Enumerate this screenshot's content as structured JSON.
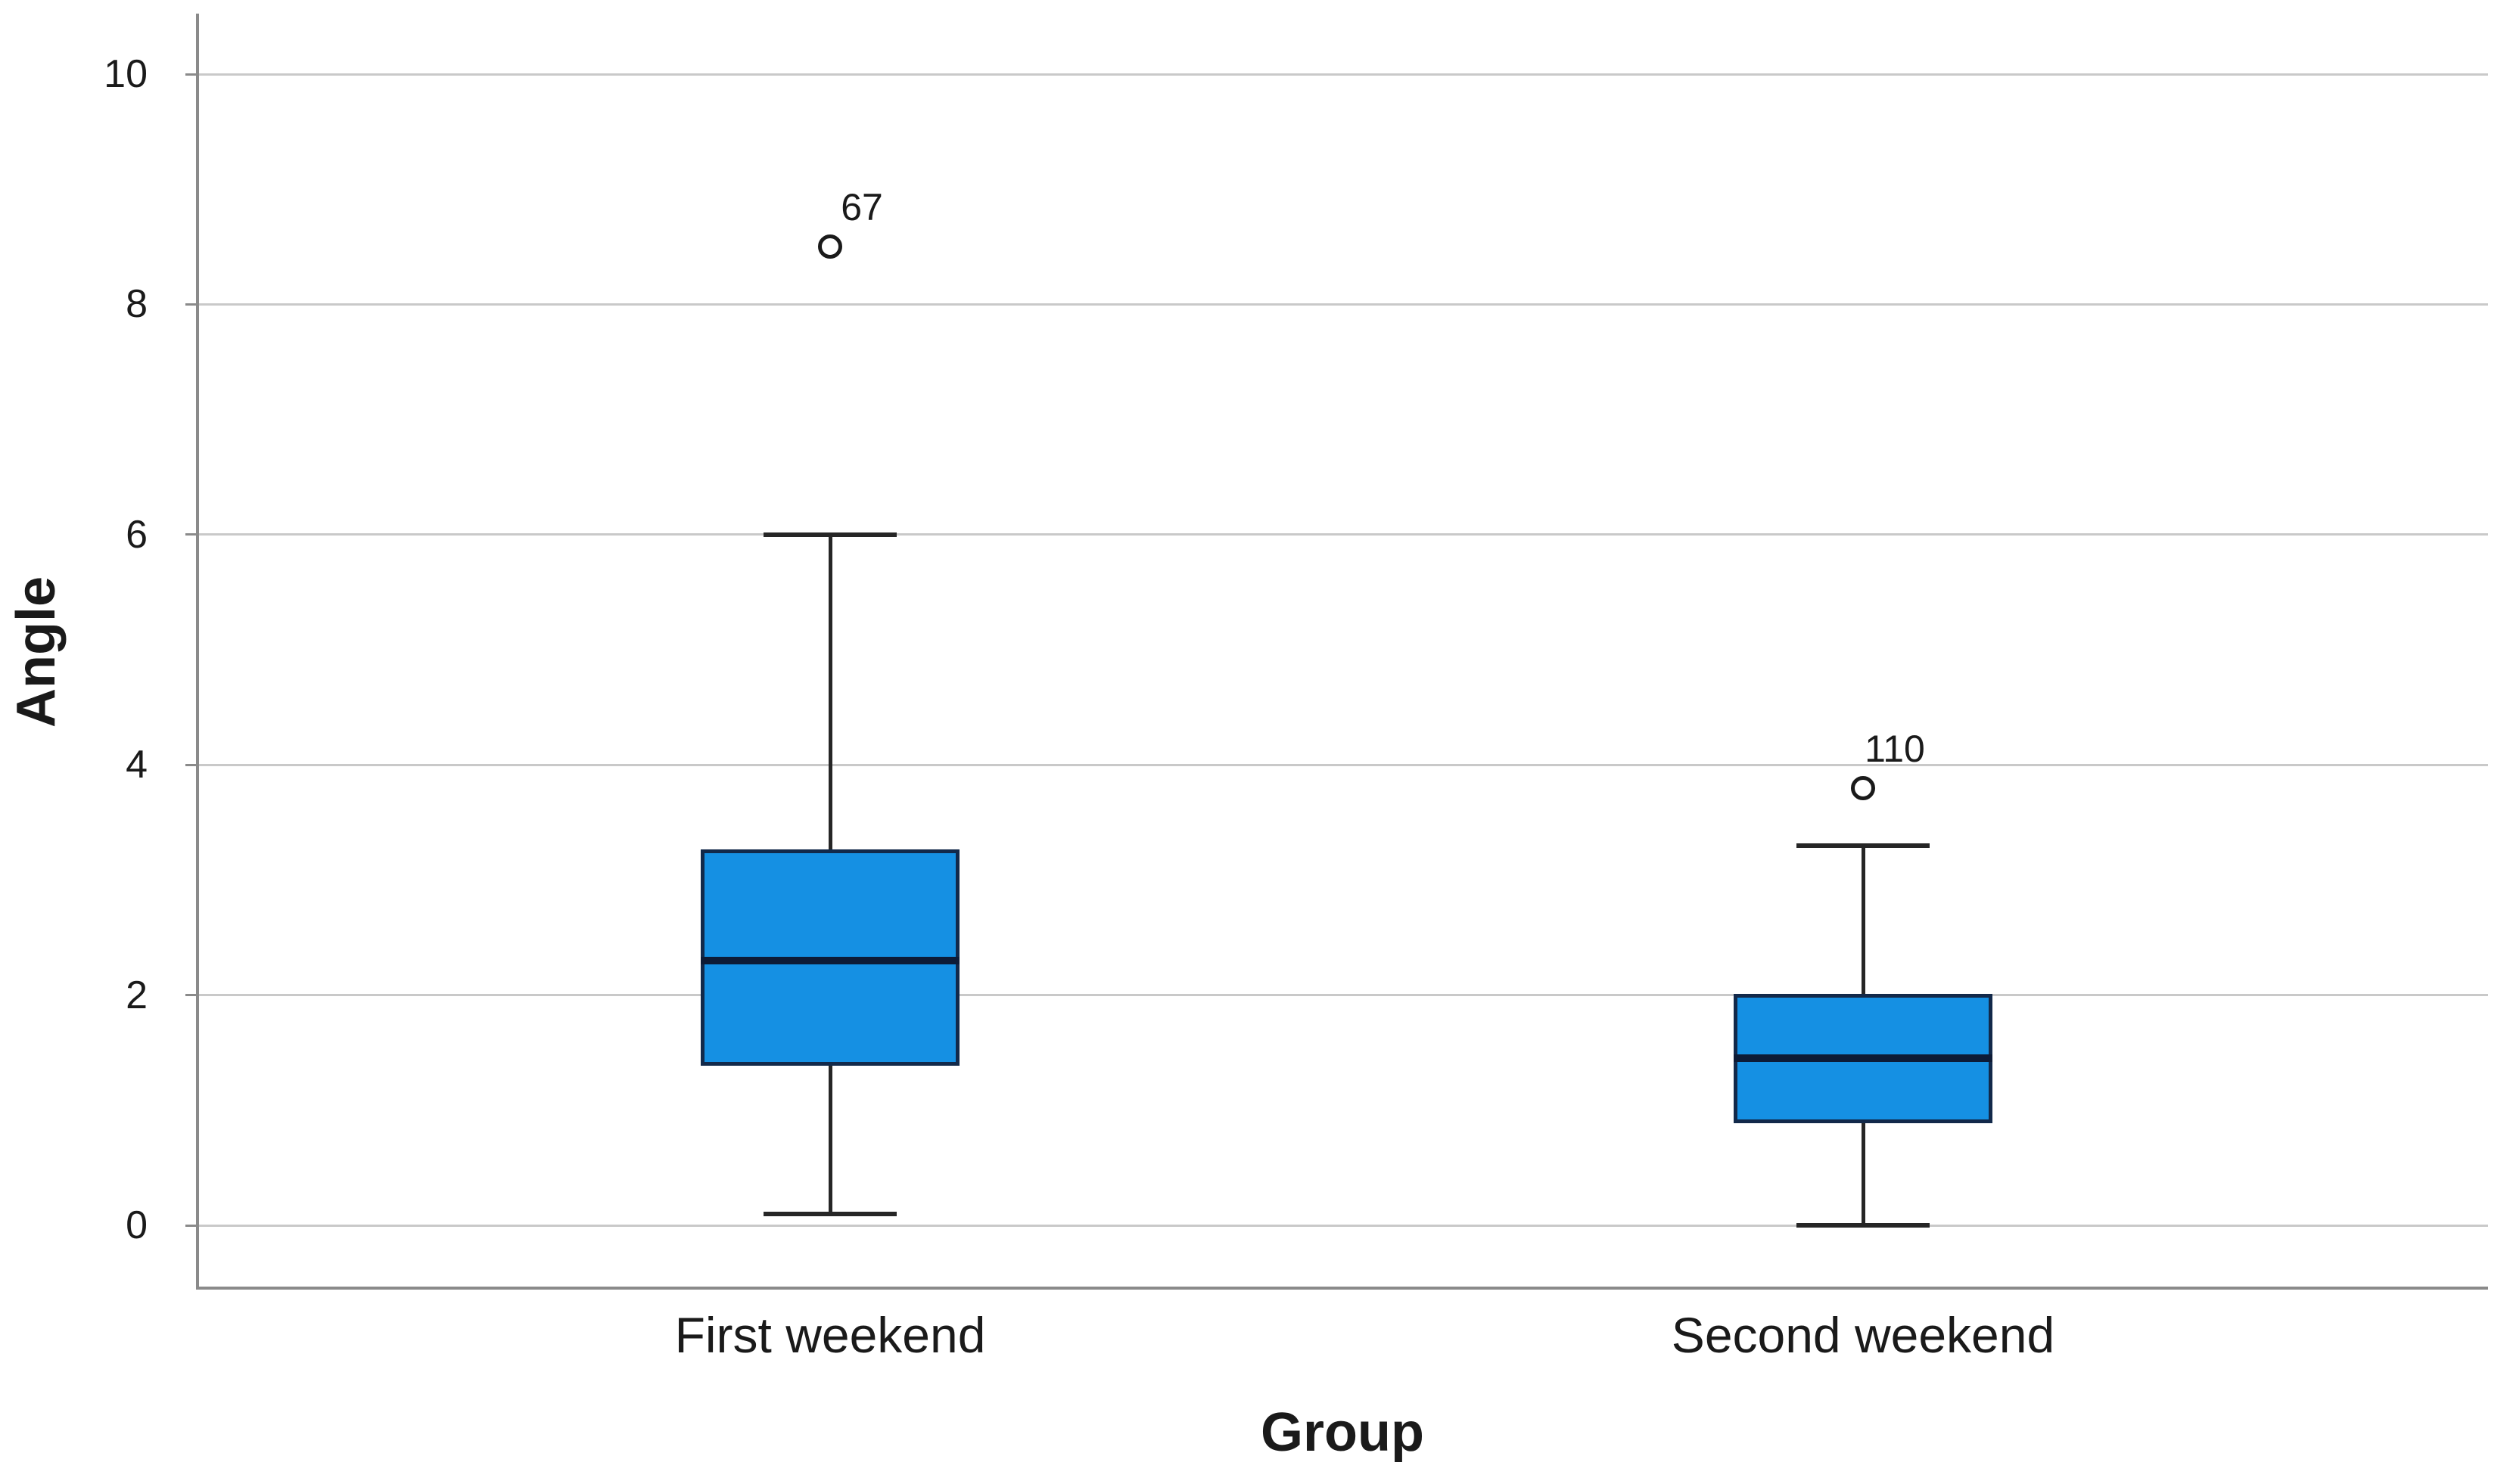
{
  "chart_data": {
    "type": "boxplot",
    "title": "",
    "xlabel": "Group",
    "ylabel": "Angle",
    "ylim": [
      0,
      10
    ],
    "yticks": [
      "10",
      "8",
      "6",
      "4",
      "2",
      "0"
    ],
    "ytick_values": [
      10,
      8,
      6,
      4,
      2,
      0
    ],
    "grid": "horizontal-light-gray",
    "legend": "none",
    "groups": [
      {
        "label": "First weekend",
        "whisker_low": 0.1,
        "q1": 1.4,
        "median": 2.3,
        "q3": 3.25,
        "whisker_high": 6.0,
        "outliers": [
          {
            "value": 8.5,
            "label": "67"
          }
        ]
      },
      {
        "label": "Second weekend",
        "whisker_low": 0.0,
        "q1": 0.9,
        "median": 1.45,
        "q3": 2.0,
        "whisker_high": 3.3,
        "outliers": [
          {
            "value": 3.8,
            "label": "110"
          }
        ]
      }
    ],
    "colors": {
      "box_fill": "#1590E3",
      "box_border": "#12294A",
      "median": "#0D1B36",
      "whisker": "#262626",
      "outlier_stroke": "#1a1a1a",
      "gridline": "#C9C9C9",
      "axis": "#8A8A8A",
      "text": "#1A1A1A",
      "background": "#FFFFFF"
    }
  }
}
